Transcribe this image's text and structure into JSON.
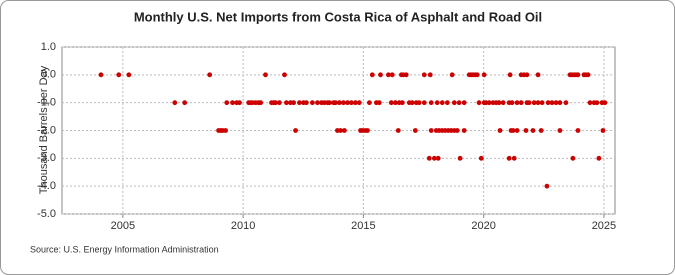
{
  "chart_data": {
    "type": "scatter",
    "title": "Monthly U.S. Net Imports from Costa Rica of Asphalt and Road Oil",
    "y_label": "Thousand Barrels per Day",
    "source": "Source: U.S. Energy Information Administration",
    "color": "#cc0000",
    "grid": true,
    "xlim": [
      2002.47,
      2025.46
    ],
    "xticks": [
      2005,
      2010,
      2015,
      2020,
      2025
    ],
    "ylim": [
      -5,
      1
    ],
    "yticks": [
      {
        "value": 1,
        "label": "1.0"
      },
      {
        "value": 0,
        "label": "0.0"
      },
      {
        "value": -1,
        "label": "-1.0"
      },
      {
        "value": -2,
        "label": "-2.0"
      },
      {
        "value": -3,
        "label": "-3.0"
      },
      {
        "value": -4,
        "label": "-4.0"
      },
      {
        "value": -5,
        "label": "-5.0"
      }
    ],
    "x": [
      2004.09,
      2004.83,
      2005.25,
      2008.61,
      2010.93,
      2011.72,
      2015.37,
      2015.71,
      2016.04,
      2016.2,
      2016.58,
      2016.66,
      2016.78,
      2017.53,
      2017.78,
      2018.69,
      2019.4,
      2019.48,
      2019.56,
      2019.65,
      2019.73,
      2020.02,
      2021.1,
      2021.56,
      2021.68,
      2021.8,
      2022.26,
      2023.59,
      2023.67,
      2023.76,
      2023.84,
      2023.92,
      2024.17,
      2024.25,
      2024.34,
      2007.16,
      2007.57,
      2009.32,
      2009.56,
      2009.73,
      2009.85,
      2010.23,
      2010.31,
      2010.39,
      2010.52,
      2010.64,
      2010.73,
      2011.18,
      2011.27,
      2011.35,
      2011.51,
      2011.8,
      2011.97,
      2012.1,
      2012.34,
      2012.51,
      2012.63,
      2012.88,
      2013.09,
      2013.26,
      2013.38,
      2013.51,
      2013.59,
      2013.76,
      2013.84,
      2014.0,
      2014.17,
      2014.34,
      2014.5,
      2014.67,
      2014.83,
      2015.25,
      2015.54,
      2015.66,
      2016.16,
      2016.33,
      2016.49,
      2016.62,
      2016.91,
      2017.03,
      2017.2,
      2017.32,
      2017.53,
      2017.82,
      2018.07,
      2018.28,
      2018.49,
      2018.78,
      2018.98,
      2019.19,
      2019.81,
      2020.02,
      2020.1,
      2020.23,
      2020.39,
      2020.52,
      2020.64,
      2020.81,
      2021.06,
      2021.18,
      2021.39,
      2021.56,
      2021.8,
      2021.89,
      2022.1,
      2022.26,
      2022.43,
      2022.68,
      2022.84,
      2023.01,
      2023.17,
      2023.42,
      2024.42,
      2024.59,
      2024.71,
      2024.92,
      2025.04,
      2008.98,
      2009.07,
      2009.15,
      2009.27,
      2012.18,
      2013.92,
      2014.05,
      2014.21,
      2014.88,
      2014.96,
      2015.08,
      2015.17,
      2016.45,
      2017.16,
      2017.82,
      2018.03,
      2018.15,
      2018.28,
      2018.4,
      2018.53,
      2018.65,
      2018.78,
      2018.9,
      2019.19,
      2020.68,
      2021.14,
      2021.22,
      2021.39,
      2021.76,
      2022.05,
      2022.39,
      2023.17,
      2023.92,
      2024.96,
      2017.74,
      2017.95,
      2018.11,
      2019.02,
      2019.9,
      2021.06,
      2021.27,
      2023.71,
      2024.79,
      2022.63
    ],
    "values": [
      0,
      0,
      0,
      0,
      0,
      0,
      0,
      0,
      0,
      0,
      0,
      0,
      0,
      0,
      0,
      0,
      0,
      0,
      0,
      0,
      0,
      0,
      0,
      0,
      0,
      0,
      0,
      0,
      0,
      0,
      0,
      0,
      0,
      0,
      0,
      -1,
      -1,
      -1,
      -1,
      -1,
      -1,
      -1,
      -1,
      -1,
      -1,
      -1,
      -1,
      -1,
      -1,
      -1,
      -1,
      -1,
      -1,
      -1,
      -1,
      -1,
      -1,
      -1,
      -1,
      -1,
      -1,
      -1,
      -1,
      -1,
      -1,
      -1,
      -1,
      -1,
      -1,
      -1,
      -1,
      -1,
      -1,
      -1,
      -1,
      -1,
      -1,
      -1,
      -1,
      -1,
      -1,
      -1,
      -1,
      -1,
      -1,
      -1,
      -1,
      -1,
      -1,
      -1,
      -1,
      -1,
      -1,
      -1,
      -1,
      -1,
      -1,
      -1,
      -1,
      -1,
      -1,
      -1,
      -1,
      -1,
      -1,
      -1,
      -1,
      -1,
      -1,
      -1,
      -1,
      -1,
      -1,
      -1,
      -1,
      -1,
      -1,
      -2,
      -2,
      -2,
      -2,
      -2,
      -2,
      -2,
      -2,
      -2,
      -2,
      -2,
      -2,
      -2,
      -2,
      -2,
      -2,
      -2,
      -2,
      -2,
      -2,
      -2,
      -2,
      -2,
      -2,
      -2,
      -2,
      -2,
      -2,
      -2,
      -2,
      -2,
      -2,
      -2,
      -2,
      -3,
      -3,
      -3,
      -3,
      -3,
      -3,
      -3,
      -3,
      -3,
      -4
    ]
  }
}
